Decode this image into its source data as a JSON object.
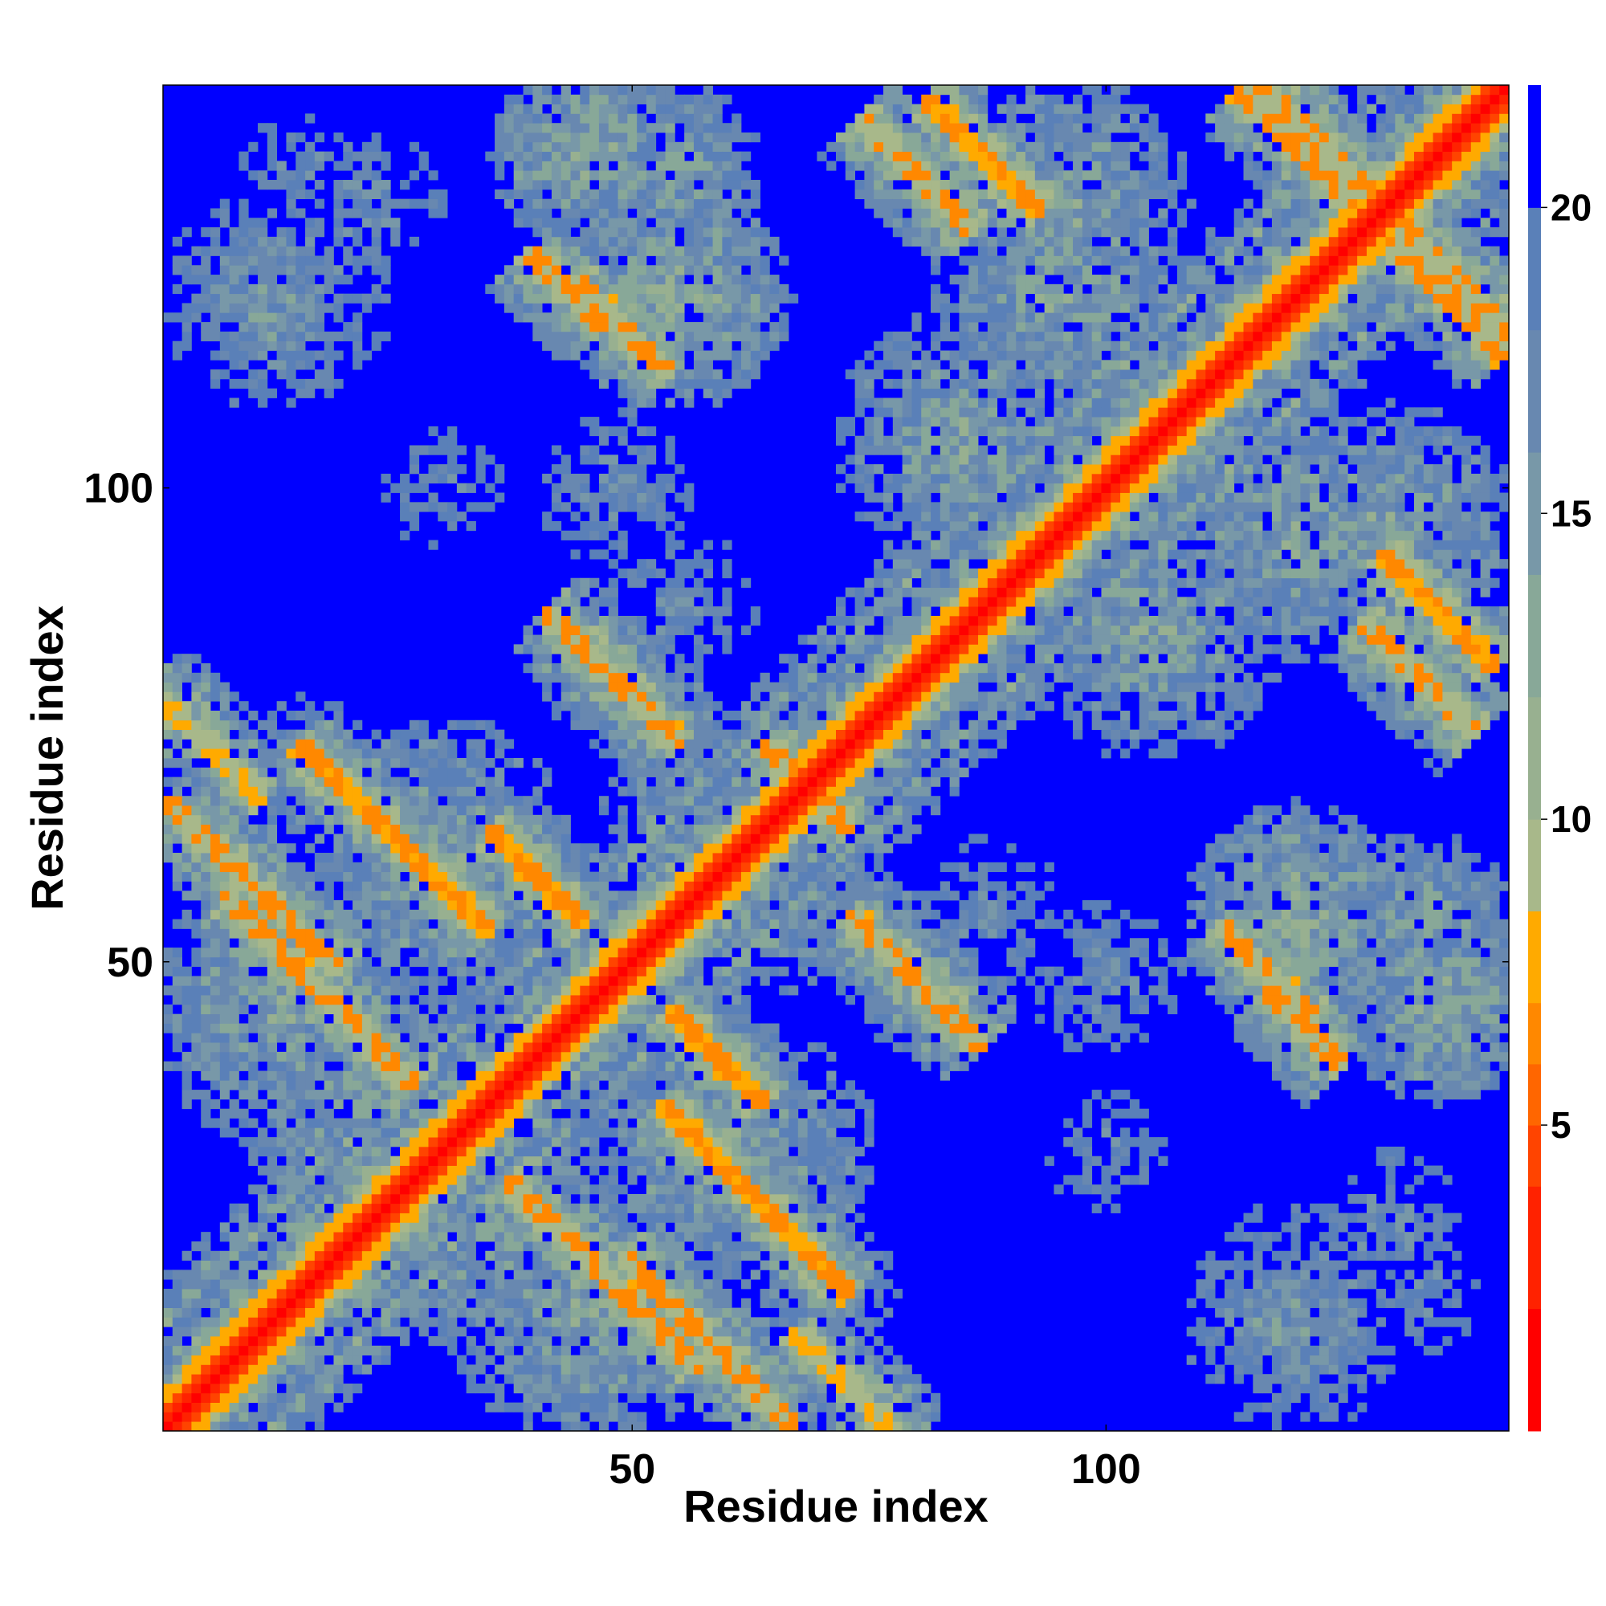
{
  "chart_data": {
    "type": "heatmap",
    "title": "",
    "xlabel": "Residue index",
    "ylabel": "Residue index",
    "xlim": [
      1,
      142
    ],
    "ylim": [
      1,
      142
    ],
    "xticks": [
      50,
      100
    ],
    "yticks": [
      50,
      100
    ],
    "xtick_labels": [
      "50",
      "100"
    ],
    "ytick_labels": [
      "50",
      "100"
    ],
    "colorbar": {
      "ticks": [
        5,
        10,
        15,
        20
      ],
      "tick_labels": [
        "5",
        "10",
        "15",
        "20"
      ],
      "range": [
        0,
        22
      ],
      "levels": [
        {
          "max": 2,
          "color": "#ff0000"
        },
        {
          "max": 4,
          "color": "#ff2200"
        },
        {
          "max": 5,
          "color": "#ff4400"
        },
        {
          "max": 6,
          "color": "#ff6600"
        },
        {
          "max": 7,
          "color": "#ff8800"
        },
        {
          "max": 8.5,
          "color": "#ffaa00"
        },
        {
          "max": 10,
          "color": "#a8b88a"
        },
        {
          "max": 12,
          "color": "#98b090"
        },
        {
          "max": 14,
          "color": "#88a898"
        },
        {
          "max": 16,
          "color": "#7898a8"
        },
        {
          "max": 18,
          "color": "#6888b0"
        },
        {
          "max": 20,
          "color": "#5a80b8"
        },
        {
          "max": 22,
          "color": "#0000ff"
        }
      ]
    },
    "matrix_description": "Symmetric pairwise residue distance map (Angstrom); values below 8 Angstrom shown warm, beyond 20 shown blue",
    "features": [
      {
        "kind": "diagonal",
        "i_start": 1,
        "i_end": 142,
        "value": 3.8
      },
      {
        "kind": "anti",
        "center": [
          63,
          25
        ],
        "half_length": 10,
        "value": 6.5
      },
      {
        "kind": "anti",
        "center": [
          47,
          17
        ],
        "half_length": 10,
        "value": 6.8
      },
      {
        "kind": "anti",
        "center": [
          58,
          10
        ],
        "half_length": 9,
        "value": 7.0
      },
      {
        "kind": "anti",
        "center": [
          73,
          5
        ],
        "half_length": 6,
        "value": 7.2
      },
      {
        "kind": "anti",
        "center": [
          40,
          59
        ],
        "half_length": 5,
        "value": 6.5
      },
      {
        "kind": "anti",
        "center": [
          48,
          80
        ],
        "half_length": 7,
        "value": 6.8
      },
      {
        "kind": "anti",
        "center": [
          67,
          70
        ],
        "half_length": 3,
        "value": 7.0
      },
      {
        "kind": "anti",
        "center": [
          117,
          49
        ],
        "half_length": 5,
        "value": 6.8
      },
      {
        "kind": "anti",
        "center": [
          133,
          80
        ],
        "half_length": 6,
        "value": 6.8
      },
      {
        "kind": "anti",
        "center": [
          87,
          135
        ],
        "half_length": 6,
        "value": 6.5
      },
      {
        "kind": "anti",
        "center": [
          120,
          136
        ],
        "half_length": 6,
        "value": 6.8
      },
      {
        "kind": "anti",
        "center": [
          137,
          122
        ],
        "half_length": 6,
        "value": 6.8
      },
      {
        "kind": "anti",
        "center": [
          43,
          121
        ],
        "half_length": 4,
        "value": 6.8
      },
      {
        "kind": "patch",
        "center": [
          45,
          135
        ],
        "radius": 10,
        "value": 13
      },
      {
        "kind": "patch",
        "center": [
          12,
          120
        ],
        "radius": 12,
        "value": 15
      },
      {
        "kind": "patch",
        "center": [
          22,
          130
        ],
        "radius": 10,
        "value": 17
      },
      {
        "kind": "patch",
        "center": [
          95,
          120
        ],
        "radius": 14,
        "value": 14
      },
      {
        "kind": "patch",
        "center": [
          105,
          85
        ],
        "radius": 14,
        "value": 14
      },
      {
        "kind": "patch",
        "center": [
          60,
          62
        ],
        "radius": 14,
        "value": 14
      },
      {
        "kind": "patch",
        "center": [
          30,
          58
        ],
        "radius": 14,
        "value": 14
      },
      {
        "kind": "patch",
        "center": [
          20,
          35
        ],
        "radius": 12,
        "value": 14
      },
      {
        "kind": "patch",
        "center": [
          62,
          30
        ],
        "radius": 14,
        "value": 14
      },
      {
        "kind": "patch",
        "center": [
          45,
          12
        ],
        "radius": 14,
        "value": 14
      },
      {
        "kind": "patch",
        "center": [
          120,
          55
        ],
        "radius": 12,
        "value": 13
      },
      {
        "kind": "patch",
        "center": [
          134,
          55
        ],
        "radius": 9,
        "value": 14
      },
      {
        "kind": "patch",
        "center": [
          130,
          95
        ],
        "radius": 14,
        "value": 14
      },
      {
        "kind": "patch",
        "center": [
          128,
          130
        ],
        "radius": 12,
        "value": 15
      },
      {
        "kind": "patch",
        "center": [
          80,
          48
        ],
        "radius": 10,
        "value": 17
      },
      {
        "kind": "patch",
        "center": [
          100,
          48
        ],
        "radius": 10,
        "value": 17
      },
      {
        "kind": "patch",
        "center": [
          120,
          15
        ],
        "radius": 12,
        "value": 17
      },
      {
        "kind": "patch",
        "center": [
          133,
          15
        ],
        "radius": 8,
        "value": 17
      },
      {
        "kind": "patch",
        "center": [
          70,
          15
        ],
        "radius": 8,
        "value": 15
      },
      {
        "kind": "patch",
        "center": [
          55,
          88
        ],
        "radius": 10,
        "value": 17
      },
      {
        "kind": "patch",
        "center": [
          30,
          100
        ],
        "radius": 10,
        "value": 18
      }
    ]
  }
}
